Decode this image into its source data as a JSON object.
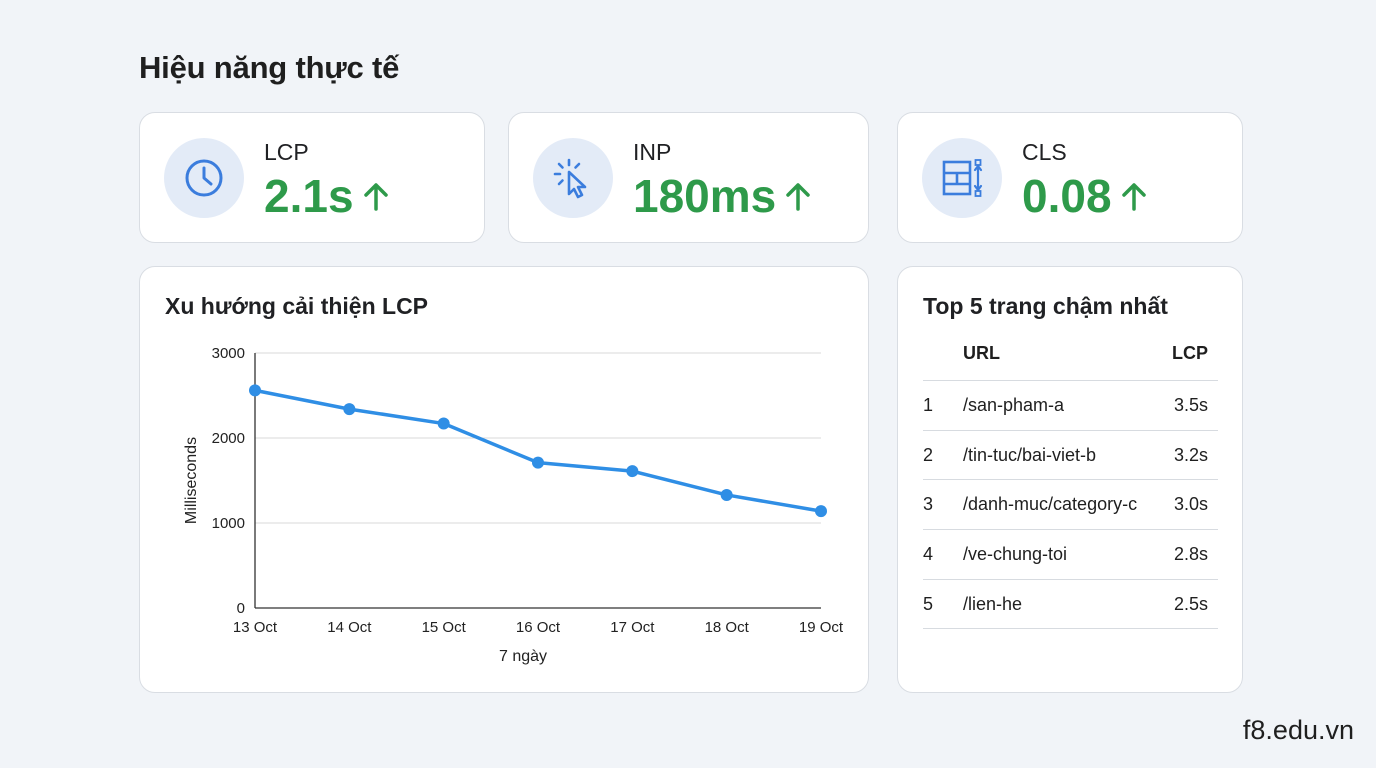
{
  "page": {
    "title": "Hiệu năng thực tế"
  },
  "metrics": [
    {
      "name": "LCP",
      "value": "2.1s",
      "icon": "clock-icon",
      "trend": "up"
    },
    {
      "name": "INP",
      "value": "180ms",
      "icon": "cursor-click-icon",
      "trend": "up"
    },
    {
      "name": "CLS",
      "value": "0.08",
      "icon": "layout-shift-icon",
      "trend": "up"
    }
  ],
  "trend": {
    "title": "Xu hướng cải thiện LCP",
    "chart_data": {
      "type": "line",
      "categories": [
        "13 Oct",
        "14 Oct",
        "15 Oct",
        "16 Oct",
        "17 Oct",
        "18 Oct",
        "19 Oct"
      ],
      "values": [
        2560,
        2340,
        2170,
        1710,
        1610,
        1330,
        1140
      ],
      "xlabel": "7 ngày",
      "ylabel": "Milliseconds",
      "ylim": [
        0,
        3000
      ],
      "yticks": [
        0,
        1000,
        2000,
        3000
      ],
      "grid": true,
      "line_color": "#2f8ee5"
    }
  },
  "slowest": {
    "title": "Top 5 trang chậm nhất",
    "columns": {
      "url": "URL",
      "lcp": "LCP"
    },
    "rows": [
      {
        "idx": "1",
        "url": "/san-pham-a",
        "lcp": "3.5s"
      },
      {
        "idx": "2",
        "url": "/tin-tuc/bai-viet-b",
        "lcp": "3.2s"
      },
      {
        "idx": "3",
        "url": "/danh-muc/category-c",
        "lcp": "3.0s"
      },
      {
        "idx": "4",
        "url": "/ve-chung-toi",
        "lcp": "2.8s"
      },
      {
        "idx": "5",
        "url": "/lien-he",
        "lcp": "2.5s"
      }
    ]
  },
  "colors": {
    "good": "#2e9a4a",
    "icon": "#3b7ddd",
    "icon_bg": "#e3ebf7"
  },
  "watermark": "f8.edu.vn"
}
